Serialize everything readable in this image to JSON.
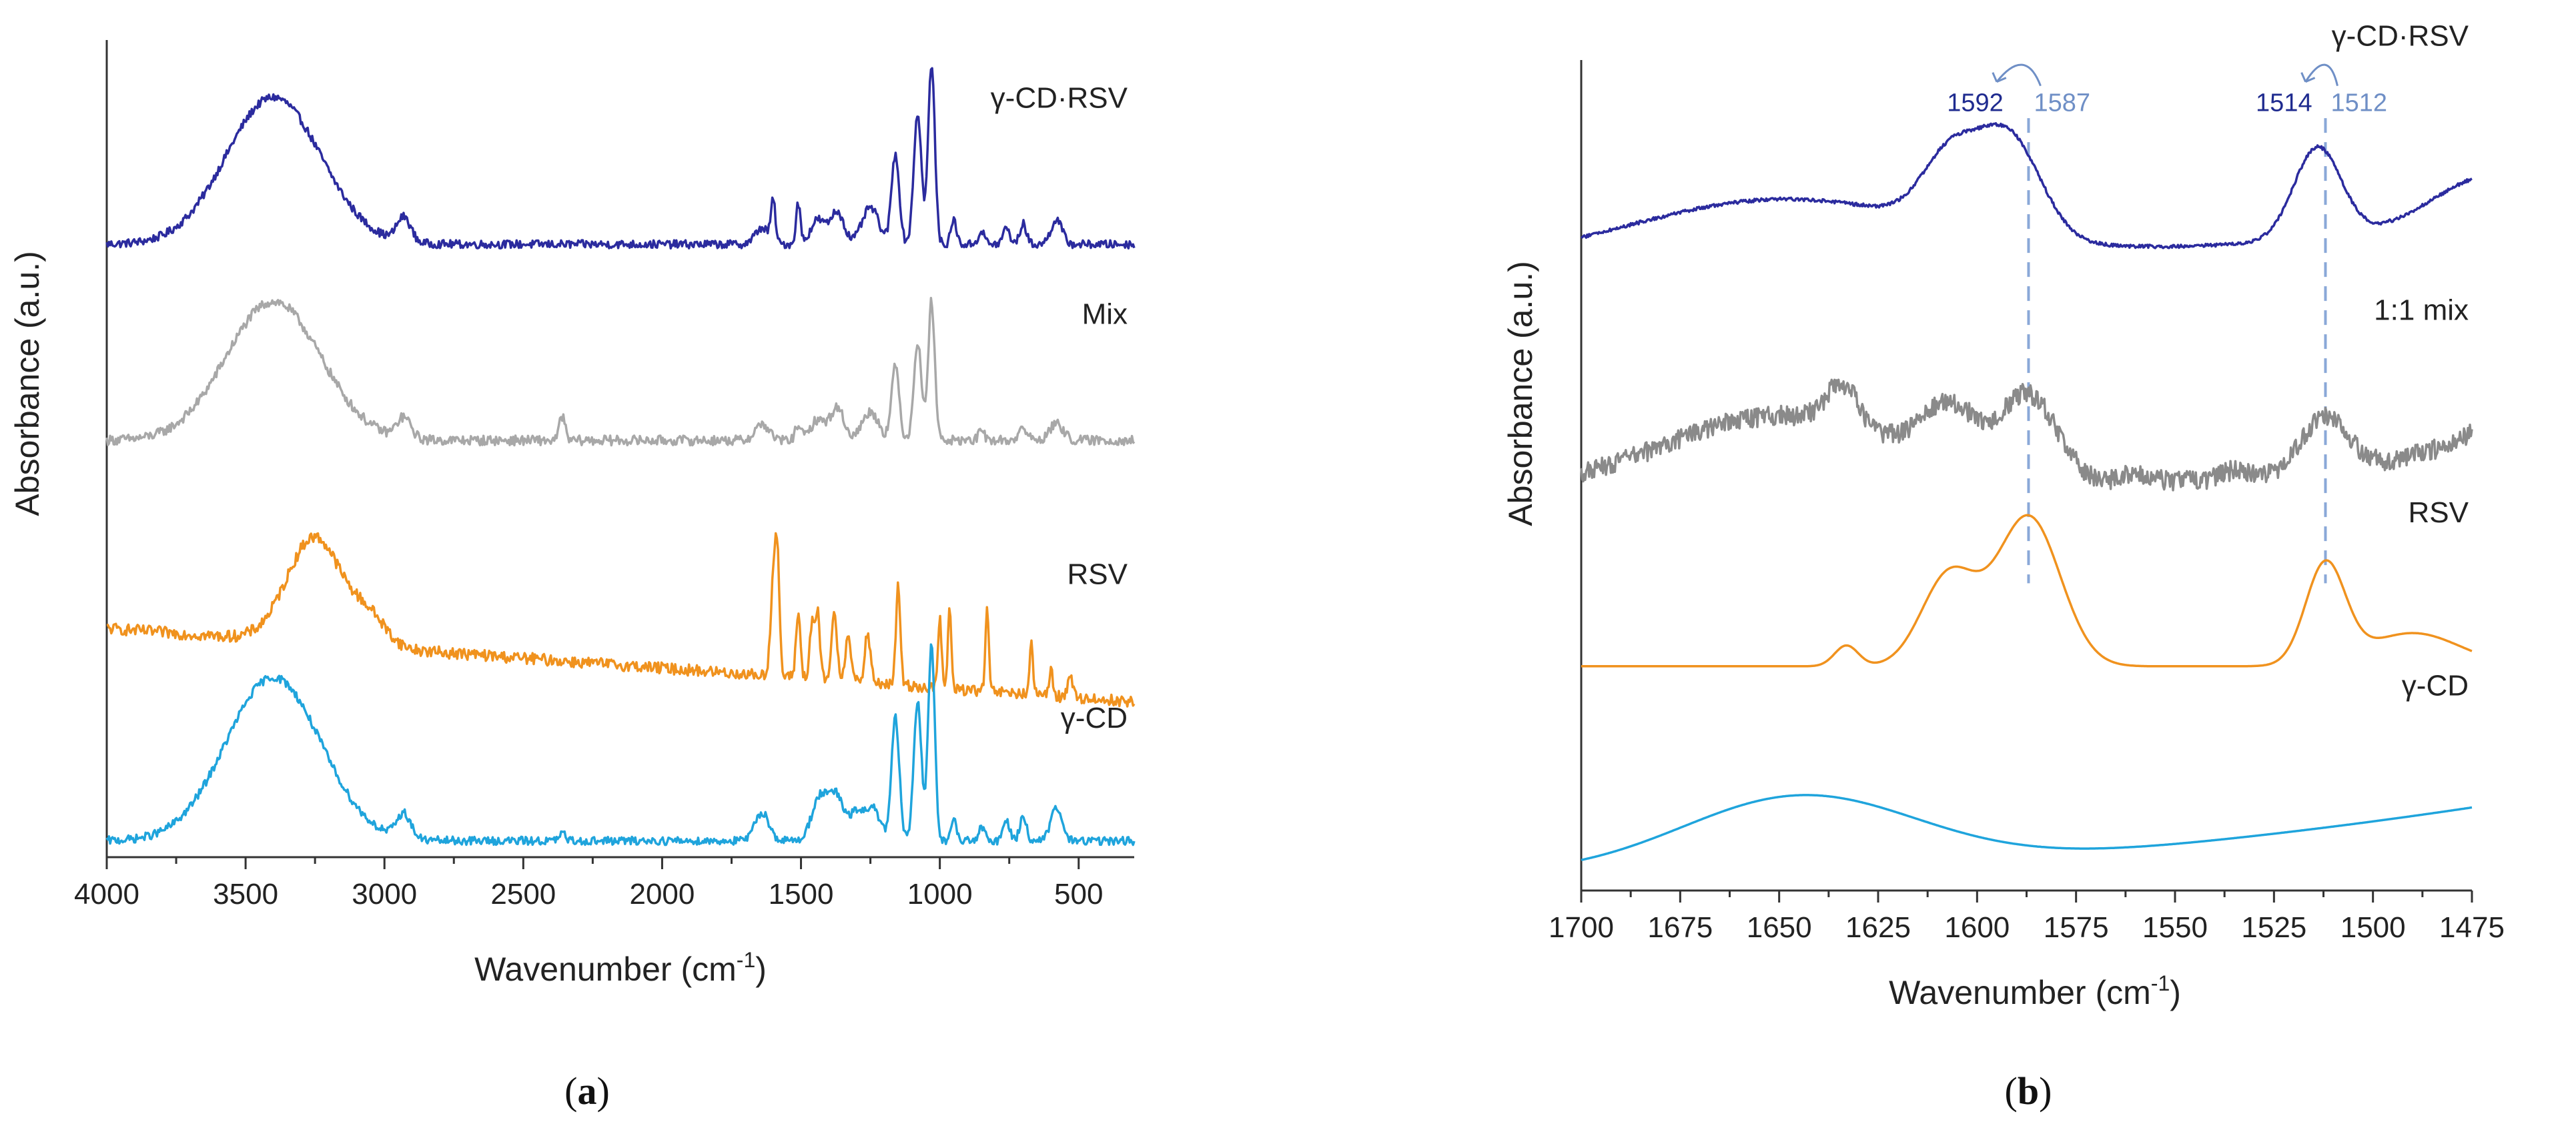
{
  "chart_data": [
    {
      "type": "line",
      "panel_label": "a",
      "xlabel": "Wavenumber (cm",
      "xlabel_superscript": "-1",
      "xlabel_suffix": ")",
      "ylabel": "Absorbance (a.u.)",
      "xlim": [
        4000,
        300
      ],
      "xticks": [
        4000,
        3500,
        3000,
        2500,
        2000,
        1500,
        1000,
        500
      ],
      "ylim": [
        0,
        1
      ],
      "grid": false,
      "series": [
        {
          "name": "γ-CD·RSV",
          "color": "#2b2b9e",
          "offset": 0.75,
          "peaks": [
            [
              3400,
              0.18,
              170
            ],
            [
              2930,
              0.03,
              25
            ],
            [
              1640,
              0.02,
              25
            ],
            [
              1600,
              0.05,
              8
            ],
            [
              1510,
              0.05,
              8
            ],
            [
              1440,
              0.03,
              25
            ],
            [
              1370,
              0.04,
              25
            ],
            [
              1250,
              0.045,
              30
            ],
            [
              1160,
              0.11,
              14
            ],
            [
              1080,
              0.16,
              14
            ],
            [
              1030,
              0.22,
              12
            ],
            [
              950,
              0.03,
              10
            ],
            [
              850,
              0.015,
              12
            ],
            [
              760,
              0.02,
              12
            ],
            [
              700,
              0.025,
              12
            ],
            [
              580,
              0.03,
              20
            ]
          ],
          "noise": 0.005
        },
        {
          "name": "Mix",
          "color": "#a8a8a8",
          "offset": 0.51,
          "peaks": [
            [
              3400,
              0.17,
              170
            ],
            [
              2930,
              0.025,
              25
            ],
            [
              2360,
              0.03,
              10
            ],
            [
              1640,
              0.02,
              25
            ],
            [
              1510,
              0.02,
              10
            ],
            [
              1440,
              0.025,
              25
            ],
            [
              1370,
              0.04,
              25
            ],
            [
              1250,
              0.035,
              30
            ],
            [
              1160,
              0.09,
              14
            ],
            [
              1080,
              0.12,
              14
            ],
            [
              1030,
              0.17,
              12
            ],
            [
              850,
              0.01,
              12
            ],
            [
              700,
              0.015,
              15
            ],
            [
              580,
              0.02,
              25
            ]
          ],
          "noise": 0.006
        },
        {
          "name": "RSV",
          "color": "#f0921e",
          "offset": 0.28,
          "baseline_drop": 0.09,
          "peaks": [
            [
              3250,
              0.13,
              100
            ],
            [
              3050,
              0.03,
              60
            ],
            [
              1600,
              0.11,
              10
            ],
            [
              1585,
              0.13,
              8
            ],
            [
              1510,
              0.08,
              8
            ],
            [
              1460,
              0.07,
              8
            ],
            [
              1440,
              0.08,
              8
            ],
            [
              1380,
              0.08,
              10
            ],
            [
              1330,
              0.06,
              10
            ],
            [
              1260,
              0.06,
              10
            ],
            [
              1150,
              0.12,
              8
            ],
            [
              1000,
              0.09,
              6
            ],
            [
              965,
              0.1,
              6
            ],
            [
              830,
              0.1,
              6
            ],
            [
              670,
              0.06,
              6
            ],
            [
              600,
              0.03,
              8
            ],
            [
              530,
              0.03,
              8
            ]
          ],
          "noise": 0.007
        },
        {
          "name": "γ-CD",
          "color": "#1fa4dc",
          "offset": 0.02,
          "peaks": [
            [
              3400,
              0.2,
              170
            ],
            [
              2930,
              0.03,
              25
            ],
            [
              2360,
              0.01,
              10
            ],
            [
              1640,
              0.035,
              25
            ],
            [
              1430,
              0.055,
              30
            ],
            [
              1370,
              0.05,
              25
            ],
            [
              1300,
              0.035,
              25
            ],
            [
              1240,
              0.04,
              25
            ],
            [
              1160,
              0.15,
              14
            ],
            [
              1080,
              0.17,
              14
            ],
            [
              1030,
              0.24,
              12
            ],
            [
              950,
              0.025,
              10
            ],
            [
              850,
              0.015,
              12
            ],
            [
              760,
              0.025,
              12
            ],
            [
              700,
              0.03,
              12
            ],
            [
              580,
              0.04,
              20
            ]
          ],
          "noise": 0.005
        }
      ]
    },
    {
      "type": "line",
      "panel_label": "b",
      "xlabel": "Wavenumber (cm",
      "xlabel_superscript": "-1",
      "xlabel_suffix": ")",
      "ylabel": "Absorbance (a.u.)",
      "xlim": [
        1700,
        1475
      ],
      "xticks": [
        1700,
        1675,
        1650,
        1625,
        1600,
        1575,
        1550,
        1525,
        1500,
        1475
      ],
      "ylim": [
        0,
        1
      ],
      "grid": false,
      "reference_lines": [
        1587,
        1512
      ],
      "peak_annotations": [
        {
          "from": 1592,
          "to": 1587,
          "from_label": "1592",
          "to_label": "1587",
          "from_color": "#1f2b8f",
          "to_color": "#6f8fc6"
        },
        {
          "from": 1514,
          "to": 1512,
          "from_label": "1514",
          "to_label": "1512",
          "from_color": "#1f2b8f",
          "to_color": "#6f8fc6"
        }
      ],
      "series": [
        {
          "name": "γ-CD·RSV",
          "color": "#2b2b9e",
          "offset": 0.75,
          "baseline_slope": [
            0.0,
            0.05
          ],
          "peaks": [
            [
              1650,
              0.08,
              40
            ],
            [
              1607,
              0.08,
              7
            ],
            [
              1592,
              0.12,
              8
            ],
            [
              1514,
              0.11,
              6
            ],
            [
              1470,
              0.06,
              15
            ]
          ],
          "noise": 0.002
        },
        {
          "name": "1:1 mix",
          "color": "#8a8a8a",
          "offset": 0.48,
          "baseline_slope": [
            0.0,
            0.03
          ],
          "peaks": [
            [
              1650,
              0.09,
              30
            ],
            [
              1634,
              0.05,
              4
            ],
            [
              1607,
              0.07,
              7
            ],
            [
              1587,
              0.1,
              7
            ],
            [
              1560,
              0.01,
              3
            ],
            [
              1535,
              0.01,
              3
            ],
            [
              1512,
              0.07,
              6
            ],
            [
              1490,
              0.015,
              8
            ],
            [
              1472,
              0.04,
              8
            ]
          ],
          "noise": 0.012
        },
        {
          "name": "RSV",
          "color": "#f0921e",
          "offset": 0.27,
          "peaks": [
            [
              1633,
              0.025,
              3
            ],
            [
              1607,
              0.11,
              7
            ],
            [
              1587,
              0.18,
              8
            ],
            [
              1512,
              0.12,
              5
            ],
            [
              1490,
              0.04,
              12
            ]
          ],
          "noise": 0.0
        },
        {
          "name": "γ-CD",
          "color": "#1fa4dc",
          "offset": 0.02,
          "baseline_slope": [
            0.0,
            0.08
          ],
          "peaks": [
            [
              1645,
              0.09,
              30
            ]
          ],
          "noise": 0.0
        }
      ]
    }
  ]
}
